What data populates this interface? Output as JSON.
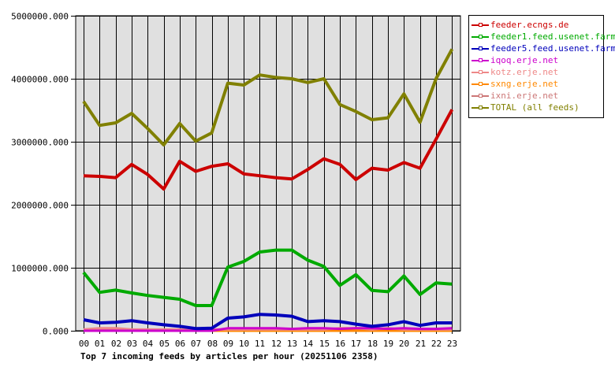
{
  "chart_data": {
    "type": "line",
    "title": "Top 7 incoming feeds by articles per hour (20251106 2358)",
    "xlabel": "",
    "ylabel": "",
    "ylim": [
      0,
      5000000
    ],
    "yticks": [
      "0.000",
      "1000000.000",
      "2000000.000",
      "3000000.000",
      "4000000.000",
      "5000000.000"
    ],
    "grid": true,
    "legend_position": "right",
    "categories": [
      "00",
      "01",
      "02",
      "03",
      "04",
      "05",
      "06",
      "07",
      "08",
      "09",
      "10",
      "11",
      "12",
      "13",
      "14",
      "15",
      "16",
      "17",
      "18",
      "19",
      "20",
      "21",
      "22",
      "23"
    ],
    "series": [
      {
        "name": "feeder.ecngs.de",
        "color": "#cc0000",
        "values": [
          2460000,
          2450000,
          2430000,
          2640000,
          2480000,
          2250000,
          2690000,
          2530000,
          2610000,
          2650000,
          2490000,
          2460000,
          2430000,
          2410000,
          2560000,
          2730000,
          2640000,
          2400000,
          2580000,
          2550000,
          2670000,
          2580000,
          3040000,
          3510000
        ]
      },
      {
        "name": "feeder1.feed.usenet.farm",
        "color": "#00aa00",
        "values": [
          925000,
          610000,
          645000,
          600000,
          560000,
          530000,
          500000,
          400000,
          400000,
          1010000,
          1100000,
          1250000,
          1280000,
          1280000,
          1120000,
          1020000,
          720000,
          890000,
          640000,
          620000,
          870000,
          575000,
          760000,
          740000
        ]
      },
      {
        "name": "feeder5.feed.usenet.farm",
        "color": "#0000bb",
        "values": [
          175000,
          125000,
          135000,
          160000,
          125000,
          95000,
          70000,
          35000,
          40000,
          200000,
          220000,
          260000,
          250000,
          230000,
          145000,
          160000,
          145000,
          105000,
          70000,
          95000,
          145000,
          85000,
          125000,
          125000
        ]
      },
      {
        "name": "iqoq.erje.net",
        "color": "#cc00cc",
        "values": [
          0,
          0,
          0,
          0,
          0,
          0,
          0,
          0,
          0,
          40000,
          40000,
          40000,
          40000,
          30000,
          40000,
          40000,
          30000,
          40000,
          40000,
          30000,
          40000,
          30000,
          30000,
          40000
        ]
      },
      {
        "name": "kotz.erje.net",
        "color": "#ee8888",
        "values": [
          20000,
          40000,
          40000,
          20000,
          20000,
          20000,
          20000,
          20000,
          20000,
          20000,
          20000,
          20000,
          20000,
          20000,
          20000,
          20000,
          40000,
          40000,
          20000,
          40000,
          20000,
          20000,
          20000,
          20000
        ]
      },
      {
        "name": "sxng.erje.net",
        "color": "#ff8800",
        "values": [
          0,
          0,
          0,
          0,
          0,
          0,
          0,
          0,
          0,
          0,
          0,
          0,
          0,
          0,
          0,
          0,
          0,
          0,
          0,
          0,
          0,
          0,
          0,
          0
        ]
      },
      {
        "name": "ixni.erje.net",
        "color": "#cc7777",
        "values": [
          15000,
          15000,
          15000,
          15000,
          15000,
          15000,
          15000,
          15000,
          15000,
          15000,
          15000,
          15000,
          15000,
          15000,
          15000,
          15000,
          15000,
          15000,
          15000,
          15000,
          15000,
          15000,
          15000,
          15000
        ]
      },
      {
        "name": "TOTAL (all feeds)",
        "color": "#808000",
        "values": [
          3640000,
          3260000,
          3300000,
          3450000,
          3210000,
          2950000,
          3290000,
          3010000,
          3140000,
          3930000,
          3900000,
          4060000,
          4020000,
          4000000,
          3940000,
          4000000,
          3590000,
          3480000,
          3350000,
          3380000,
          3760000,
          3310000,
          4000000,
          4470000
        ]
      }
    ]
  }
}
